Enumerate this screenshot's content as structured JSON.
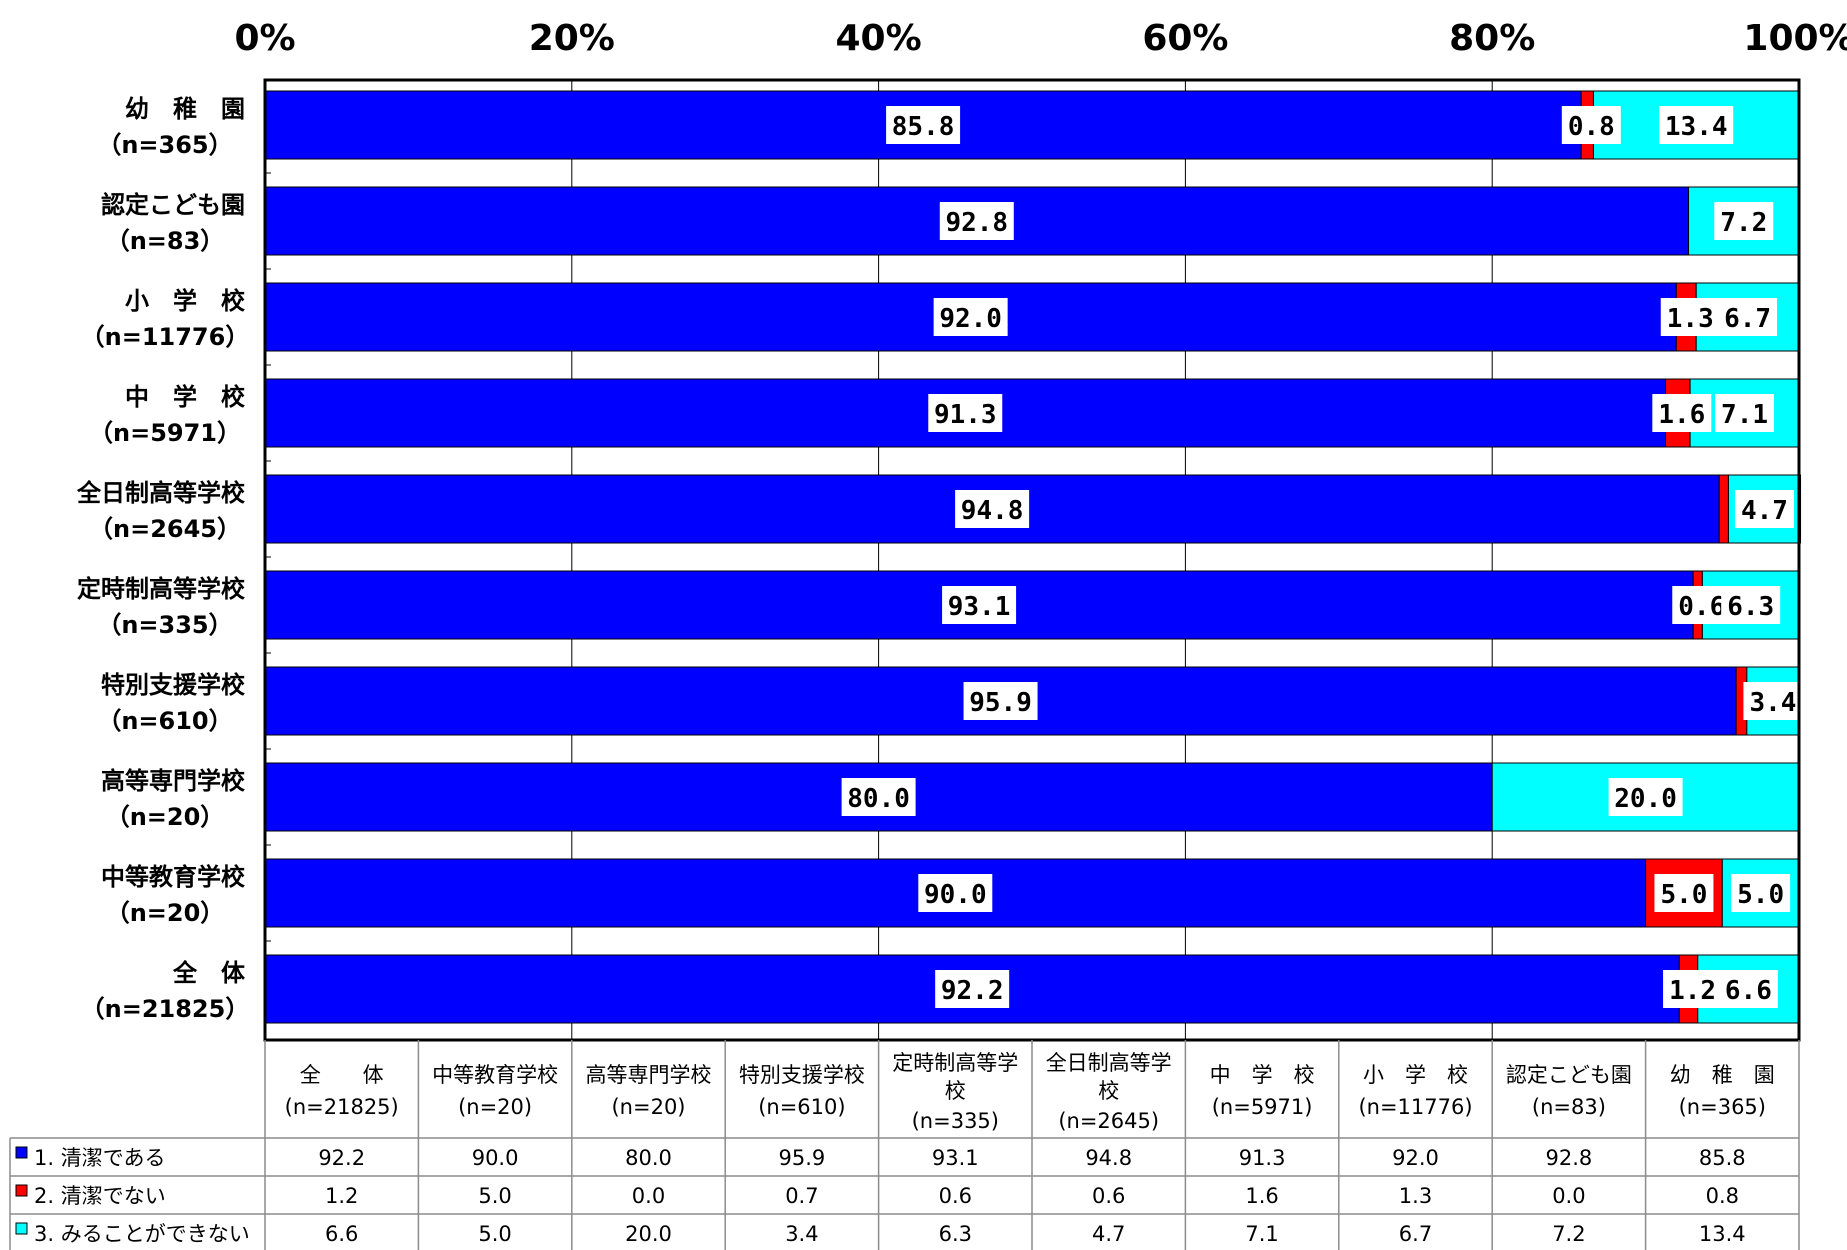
{
  "chart_data": {
    "type": "bar",
    "orientation": "horizontal",
    "stacked": true,
    "percent": true,
    "title": "",
    "xlabel": "",
    "ylabel": "",
    "xlim": [
      0,
      100
    ],
    "x_ticks": [
      "0%",
      "20%",
      "40%",
      "60%",
      "80%",
      "100%"
    ],
    "grid": true,
    "categories": [
      {
        "name": "幼　稚　園",
        "n": "（n=365）"
      },
      {
        "name": "認定こども園",
        "n": "（n=83）"
      },
      {
        "name": "小　学　校",
        "n": "（n=11776）"
      },
      {
        "name": "中　学　校",
        "n": "（n=5971）"
      },
      {
        "name": "全日制高等学校",
        "n": "（n=2645）"
      },
      {
        "name": "定時制高等学校",
        "n": "（n=335）"
      },
      {
        "name": "特別支援学校",
        "n": "（n=610）"
      },
      {
        "name": "高等専門学校",
        "n": "（n=20）"
      },
      {
        "name": "中等教育学校",
        "n": "（n=20）"
      },
      {
        "name": "全　体",
        "n": "（n=21825）"
      }
    ],
    "series": [
      {
        "name": "1. 清潔である",
        "color": "#0000ff",
        "values": [
          85.8,
          92.8,
          92.0,
          91.3,
          94.8,
          93.1,
          95.9,
          80.0,
          90.0,
          92.2
        ],
        "labels": [
          "85.8",
          "92.8",
          "92.0",
          "91.3",
          "94.8",
          "93.1",
          "95.9",
          "80.0",
          "90.0",
          "92.2"
        ]
      },
      {
        "name": "2. 清潔でない",
        "color": "#ff0000",
        "values": [
          0.8,
          0.0,
          1.3,
          1.6,
          0.6,
          0.6,
          0.7,
          0.0,
          5.0,
          1.2
        ],
        "labels": [
          "0.8",
          "",
          "1.3",
          "1.6",
          "",
          "0.6",
          "",
          "",
          "5.0",
          "1.2"
        ]
      },
      {
        "name": "3. みることができない",
        "color": "#00ffff",
        "values": [
          13.4,
          7.2,
          6.7,
          7.1,
          4.7,
          6.3,
          3.4,
          20.0,
          5.0,
          6.6
        ],
        "labels": [
          "13.4",
          "7.2",
          "6.7",
          "7.1",
          "4.7",
          "6.3",
          "3.4",
          "20.0",
          "5.0",
          "6.6"
        ]
      }
    ],
    "table": {
      "columns": [
        {
          "name": "全　　体",
          "n": "(n=21825)"
        },
        {
          "name": "中等教育学校",
          "n": "(n=20)"
        },
        {
          "name": "高等専門学校",
          "n": "(n=20)"
        },
        {
          "name": "特別支援学校",
          "n": "(n=610)"
        },
        {
          "name": "定時制高等学",
          "name2": "校",
          "n": "(n=335)"
        },
        {
          "name": "全日制高等学",
          "name2": "校",
          "n": "(n=2645)"
        },
        {
          "name": "中　学　校",
          "n": "(n=5971)"
        },
        {
          "name": "小　学　校",
          "n": "(n=11776)"
        },
        {
          "name": "認定こども園",
          "n": "(n=83)"
        },
        {
          "name": "幼　稚　園",
          "n": "(n=365)"
        }
      ],
      "rows": [
        {
          "label": "1. 清潔である",
          "color": "#0000ff",
          "values": [
            "92.2",
            "90.0",
            "80.0",
            "95.9",
            "93.1",
            "94.8",
            "91.3",
            "92.0",
            "92.8",
            "85.8"
          ]
        },
        {
          "label": "2. 清潔でない",
          "color": "#ff0000",
          "values": [
            "1.2",
            "5.0",
            "0.0",
            "0.7",
            "0.6",
            "0.6",
            "1.6",
            "1.3",
            "0.0",
            "0.8"
          ]
        },
        {
          "label": "3. みることができない",
          "color": "#00ffff",
          "values": [
            "6.6",
            "5.0",
            "20.0",
            "3.4",
            "6.3",
            "4.7",
            "7.1",
            "6.7",
            "7.2",
            "13.4"
          ]
        }
      ]
    }
  }
}
